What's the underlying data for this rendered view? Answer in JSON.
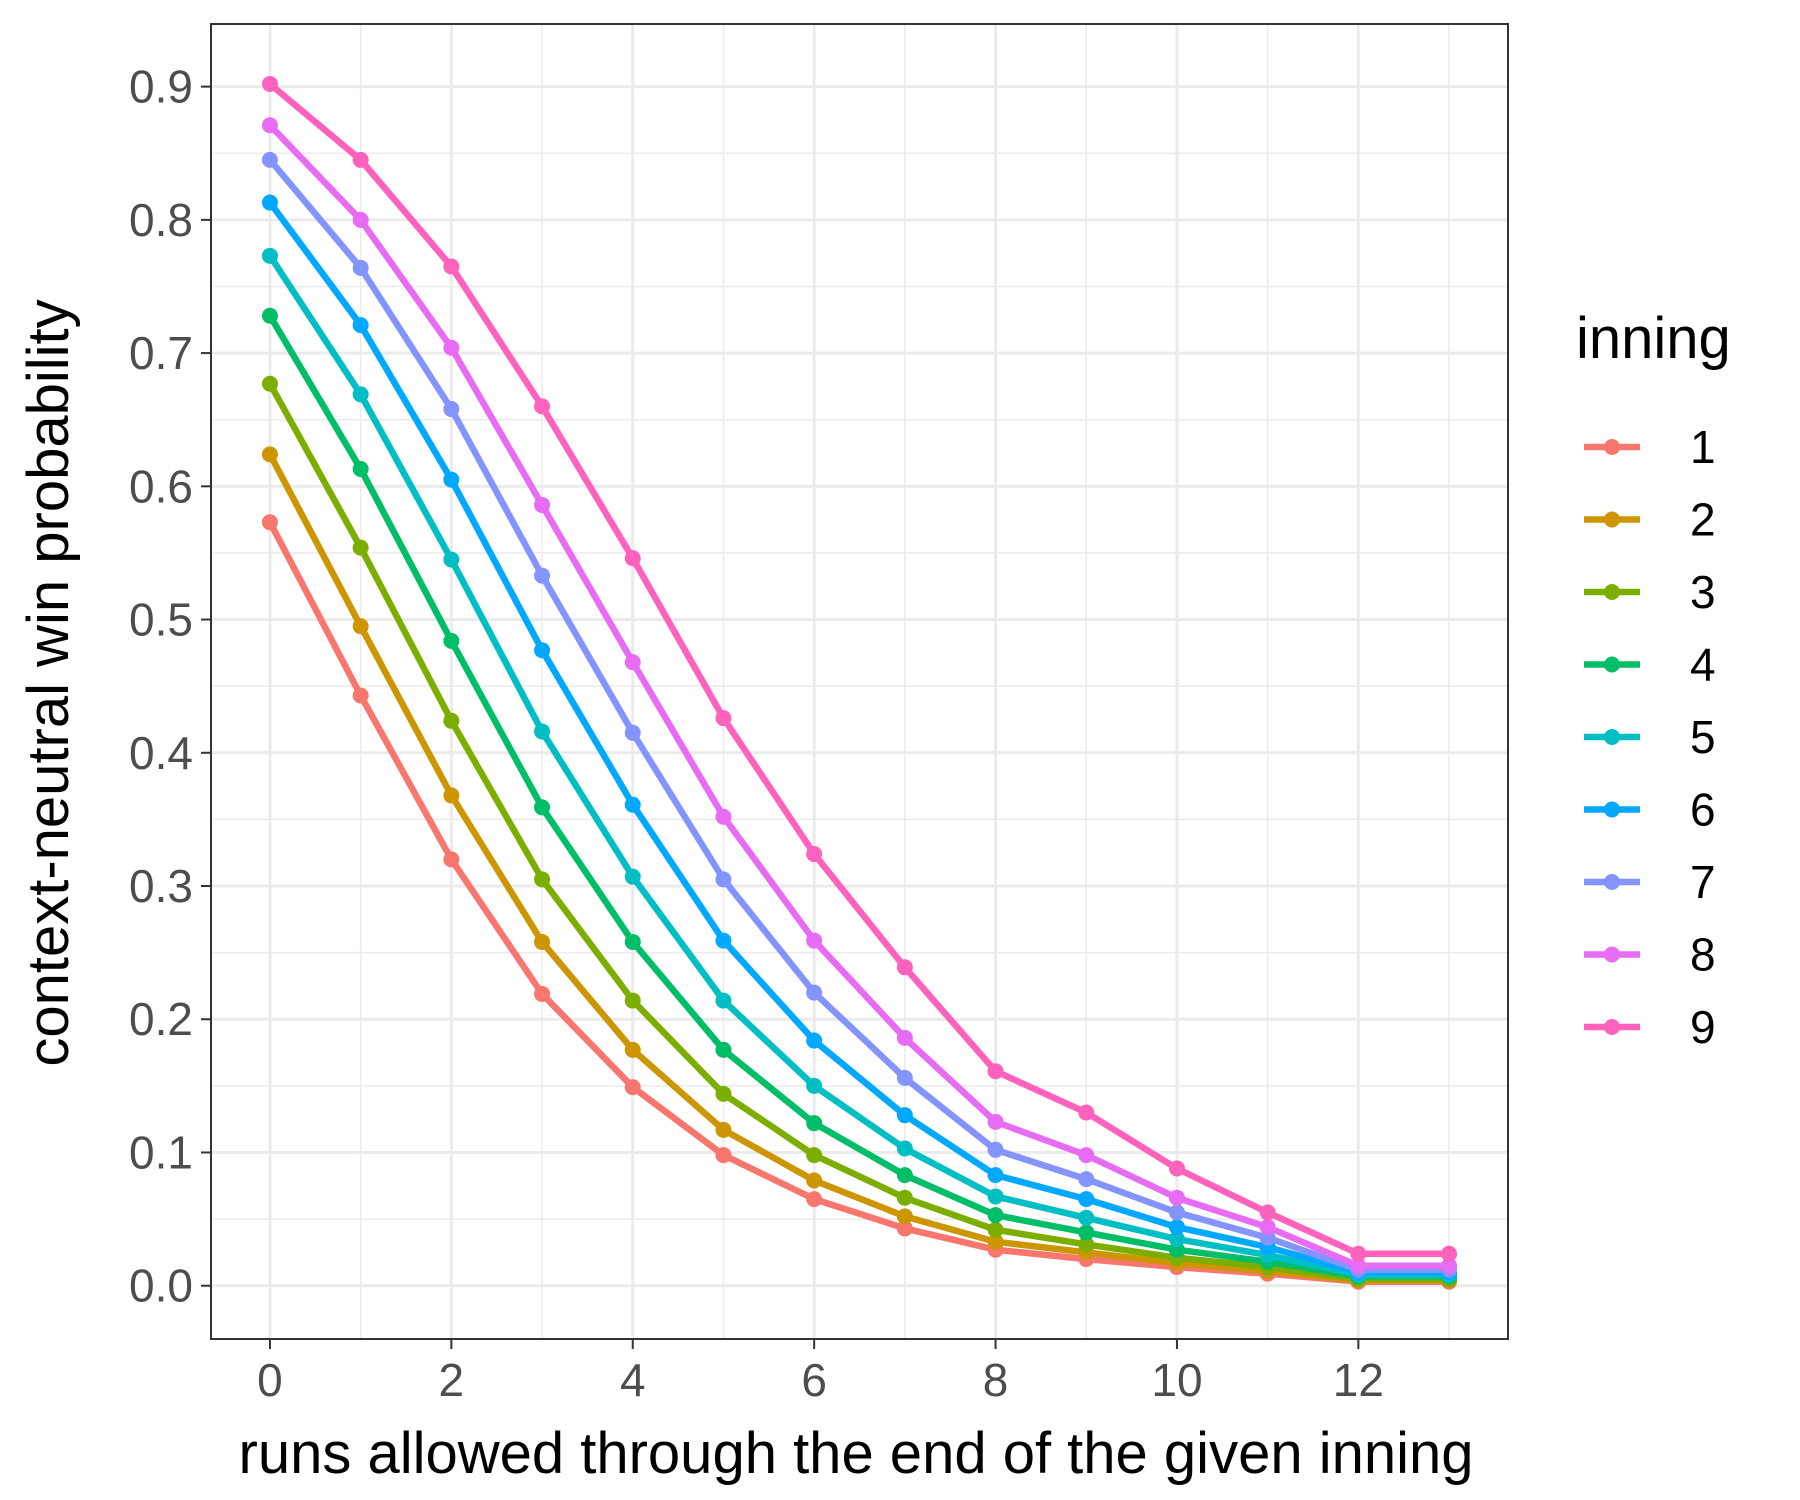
{
  "chart_data": {
    "type": "line",
    "title": "",
    "xlabel": "runs allowed through the end of the given inning",
    "ylabel": "context-neutral win probability",
    "xlim": [
      -0.65,
      13.65
    ],
    "ylim": [
      -0.04,
      0.947
    ],
    "x_ticks": [
      "0",
      "2",
      "4",
      "6",
      "8",
      "10",
      "12"
    ],
    "y_ticks": [
      "0.0",
      "0.1",
      "0.2",
      "0.3",
      "0.4",
      "0.5",
      "0.6",
      "0.7",
      "0.8",
      "0.9"
    ],
    "grid": true,
    "legend_title": "inning",
    "legend_position": "right",
    "x": [
      0,
      1,
      2,
      3,
      4,
      5,
      6,
      7,
      8,
      9,
      10,
      11,
      12,
      13
    ],
    "series": [
      {
        "name": "1",
        "color": "#F8766D",
        "values": [
          0.573,
          0.443,
          0.32,
          0.219,
          0.149,
          0.098,
          0.065,
          0.043,
          0.027,
          0.02,
          0.014,
          0.009,
          0.003,
          0.003
        ]
      },
      {
        "name": "2",
        "color": "#CD9600",
        "values": [
          0.624,
          0.495,
          0.368,
          0.258,
          0.177,
          0.117,
          0.079,
          0.052,
          0.033,
          0.025,
          0.017,
          0.011,
          0.004,
          0.004
        ]
      },
      {
        "name": "3",
        "color": "#7CAE00",
        "values": [
          0.677,
          0.554,
          0.424,
          0.305,
          0.214,
          0.144,
          0.098,
          0.066,
          0.042,
          0.031,
          0.021,
          0.014,
          0.005,
          0.005
        ]
      },
      {
        "name": "4",
        "color": "#00BE67",
        "values": [
          0.728,
          0.613,
          0.484,
          0.359,
          0.258,
          0.177,
          0.122,
          0.083,
          0.053,
          0.04,
          0.027,
          0.018,
          0.007,
          0.007
        ]
      },
      {
        "name": "5",
        "color": "#00BFC4",
        "values": [
          0.773,
          0.669,
          0.545,
          0.416,
          0.307,
          0.214,
          0.15,
          0.103,
          0.067,
          0.051,
          0.035,
          0.023,
          0.008,
          0.008
        ]
      },
      {
        "name": "6",
        "color": "#00A9FF",
        "values": [
          0.813,
          0.721,
          0.605,
          0.477,
          0.361,
          0.259,
          0.184,
          0.128,
          0.083,
          0.065,
          0.044,
          0.029,
          0.01,
          0.01
        ]
      },
      {
        "name": "7",
        "color": "#8494FF",
        "values": [
          0.845,
          0.764,
          0.658,
          0.533,
          0.415,
          0.305,
          0.22,
          0.156,
          0.102,
          0.08,
          0.055,
          0.036,
          0.012,
          0.012
        ]
      },
      {
        "name": "8",
        "color": "#E76BF3",
        "values": [
          0.871,
          0.8,
          0.704,
          0.586,
          0.468,
          0.352,
          0.259,
          0.186,
          0.123,
          0.098,
          0.066,
          0.044,
          0.015,
          0.015
        ]
      },
      {
        "name": "9",
        "color": "#FF62BC",
        "values": [
          0.902,
          0.845,
          0.765,
          0.66,
          0.546,
          0.426,
          0.324,
          0.239,
          0.161,
          0.13,
          0.088,
          0.055,
          0.024,
          0.024
        ]
      }
    ]
  }
}
